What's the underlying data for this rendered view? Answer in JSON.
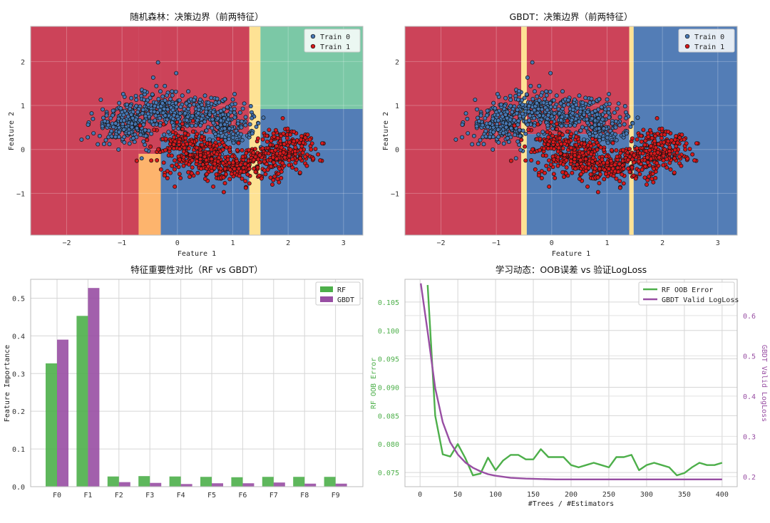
{
  "chart_data": [
    {
      "type": "scatter",
      "panel": "rf-decision-boundary",
      "title": "随机森林：决策边界（前两特征）",
      "xlabel": "Feature 1",
      "ylabel": "Feature 2",
      "xlim": [
        -2.65,
        3.35
      ],
      "ylim": [
        -1.95,
        2.8
      ],
      "xticks": [
        "−2",
        "−1",
        "0",
        "1",
        "2",
        "3"
      ],
      "xtick_values": [
        -2,
        -1,
        0,
        1,
        2,
        3
      ],
      "yticks": [
        "−1",
        "0",
        "1",
        "2"
      ],
      "ytick_values": [
        -1,
        0,
        1,
        2
      ],
      "legend": [
        {
          "label": "Train 0",
          "color": "#4878b4"
        },
        {
          "label": "Train 1",
          "color": "#d7191c"
        }
      ],
      "legend_position": "top-right",
      "grid": true,
      "regions": [
        {
          "x0": -2.65,
          "x1": -0.7,
          "y0": -1.95,
          "y1": 2.8,
          "color": "#c8334b"
        },
        {
          "x0": -0.7,
          "x1": -0.3,
          "y0": -1.95,
          "y1": -0.1,
          "color": "#fdae61"
        },
        {
          "x0": -0.7,
          "x1": -0.3,
          "y0": -0.1,
          "y1": 2.8,
          "color": "#c8334b"
        },
        {
          "x0": -0.3,
          "x1": 1.3,
          "y0": -1.95,
          "y1": 0.35,
          "color": "#4472b0"
        },
        {
          "x0": -0.3,
          "x1": 1.3,
          "y0": 0.35,
          "y1": 2.8,
          "color": "#c8334b"
        },
        {
          "x0": 1.3,
          "x1": 1.5,
          "y0": -1.95,
          "y1": 2.8,
          "color": "#fee08b"
        },
        {
          "x0": 1.5,
          "x1": 3.35,
          "y0": -1.95,
          "y1": 0.92,
          "color": "#4472b0"
        },
        {
          "x0": 1.5,
          "x1": 3.35,
          "y0": 0.92,
          "y1": 2.8,
          "color": "#70c39e"
        }
      ],
      "class0_center": [
        -0.1,
        0.75
      ],
      "class1_center": [
        1.0,
        -0.05
      ],
      "points_per_class": 700
    },
    {
      "type": "scatter",
      "panel": "gbdt-decision-boundary",
      "title": "GBDT：决策边界（前两特征）",
      "xlabel": "Feature 1",
      "ylabel": "Feature 2",
      "xlim": [
        -2.65,
        3.35
      ],
      "ylim": [
        -1.95,
        2.8
      ],
      "xticks": [
        "−2",
        "−1",
        "0",
        "1",
        "2",
        "3"
      ],
      "xtick_values": [
        -2,
        -1,
        0,
        1,
        2,
        3
      ],
      "yticks": [
        "−1",
        "0",
        "1",
        "2"
      ],
      "ytick_values": [
        -1,
        0,
        1,
        2
      ],
      "legend": [
        {
          "label": "Train 0",
          "color": "#4878b4"
        },
        {
          "label": "Train 1",
          "color": "#d7191c"
        }
      ],
      "legend_position": "top-right",
      "grid": true,
      "regions": [
        {
          "x0": -2.65,
          "x1": -0.55,
          "y0": -1.95,
          "y1": 2.8,
          "color": "#c8334b"
        },
        {
          "x0": -0.55,
          "x1": -0.45,
          "y0": -1.95,
          "y1": 2.8,
          "color": "#fee08b"
        },
        {
          "x0": -0.45,
          "x1": 1.4,
          "y0": -1.95,
          "y1": 0.35,
          "color": "#4472b0"
        },
        {
          "x0": -0.45,
          "x1": 1.4,
          "y0": 0.35,
          "y1": 2.8,
          "color": "#c8334b"
        },
        {
          "x0": 1.4,
          "x1": 1.48,
          "y0": -1.95,
          "y1": 2.8,
          "color": "#fee08b"
        },
        {
          "x0": 1.48,
          "x1": 3.35,
          "y0": -1.95,
          "y1": 2.8,
          "color": "#4472b0"
        }
      ],
      "class0_center": [
        -0.1,
        0.75
      ],
      "class1_center": [
        1.0,
        -0.05
      ],
      "points_per_class": 700
    },
    {
      "type": "bar",
      "panel": "feature-importance",
      "title": "特征重要性对比（RF vs GBDT）",
      "xlabel": "",
      "ylabel": "Feature Importance",
      "categories": [
        "F0",
        "F1",
        "F2",
        "F3",
        "F4",
        "F5",
        "F6",
        "F7",
        "F8",
        "F9"
      ],
      "series": [
        {
          "name": "RF",
          "color": "#4daf4a",
          "values": [
            0.327,
            0.453,
            0.027,
            0.028,
            0.027,
            0.026,
            0.025,
            0.026,
            0.026,
            0.026
          ]
        },
        {
          "name": "GBDT",
          "color": "#984ea3",
          "values": [
            0.39,
            0.527,
            0.012,
            0.01,
            0.007,
            0.009,
            0.009,
            0.011,
            0.008,
            0.008
          ]
        }
      ],
      "ylim": [
        0,
        0.55
      ],
      "yticks": [
        "0.0",
        "0.1",
        "0.2",
        "0.3",
        "0.4",
        "0.5"
      ],
      "ytick_values": [
        0,
        0.1,
        0.2,
        0.3,
        0.4,
        0.5
      ],
      "legend_position": "top-right",
      "grid": true
    },
    {
      "type": "line",
      "panel": "learning-dynamics",
      "title": "学习动态：OOB误差 vs 验证LogLoss",
      "xlabel": "#Trees / #Estimators",
      "ylabel": "RF OOB Error",
      "ylabel_right": "GBDT Valid LogLoss",
      "xlim": [
        -20,
        420
      ],
      "xticks": [
        "0",
        "50",
        "100",
        "150",
        "200",
        "250",
        "300",
        "350",
        "400"
      ],
      "xtick_values": [
        0,
        50,
        100,
        150,
        200,
        250,
        300,
        350,
        400
      ],
      "ylim_left": [
        0.0725,
        0.109
      ],
      "yticks_left": [
        "0.075",
        "0.080",
        "0.085",
        "0.090",
        "0.095",
        "0.100",
        "0.105"
      ],
      "ytick_values_left": [
        0.075,
        0.08,
        0.085,
        0.09,
        0.095,
        0.1,
        0.105
      ],
      "ylim_right": [
        0.175,
        0.69
      ],
      "yticks_right": [
        "0.2",
        "0.3",
        "0.4",
        "0.5",
        "0.6"
      ],
      "ytick_values_right": [
        0.2,
        0.3,
        0.4,
        0.5,
        0.6
      ],
      "left_axis_color": "#4daf4a",
      "right_axis_color": "#984ea3",
      "legend_position": "top-right",
      "grid": true,
      "series": [
        {
          "name": "RF OOB Error",
          "axis": "left",
          "color": "#4daf4a",
          "x": [
            10,
            20,
            30,
            40,
            50,
            60,
            70,
            80,
            90,
            100,
            110,
            120,
            130,
            140,
            150,
            160,
            170,
            180,
            190,
            200,
            210,
            220,
            230,
            240,
            250,
            260,
            270,
            280,
            290,
            300,
            310,
            320,
            330,
            340,
            350,
            360,
            370,
            380,
            390,
            400
          ],
          "y": [
            0.108,
            0.085,
            0.0782,
            0.0778,
            0.08,
            0.0775,
            0.0745,
            0.0748,
            0.0776,
            0.0754,
            0.0771,
            0.0781,
            0.0781,
            0.0773,
            0.0773,
            0.0791,
            0.0777,
            0.0777,
            0.0777,
            0.0763,
            0.0759,
            0.0763,
            0.0767,
            0.0763,
            0.0759,
            0.0777,
            0.0777,
            0.0781,
            0.0754,
            0.0763,
            0.0767,
            0.0763,
            0.0759,
            0.0745,
            0.0749,
            0.0759,
            0.0767,
            0.0763,
            0.0763,
            0.0767
          ]
        },
        {
          "name": "GBDT Valid LogLoss",
          "axis": "right",
          "color": "#984ea3",
          "x": [
            1,
            10,
            20,
            30,
            40,
            50,
            60,
            70,
            80,
            90,
            100,
            120,
            140,
            160,
            180,
            200,
            250,
            300,
            350,
            400
          ],
          "y": [
            0.68,
            0.56,
            0.42,
            0.335,
            0.285,
            0.255,
            0.235,
            0.222,
            0.213,
            0.206,
            0.202,
            0.197,
            0.195,
            0.194,
            0.193,
            0.193,
            0.193,
            0.193,
            0.193,
            0.193
          ]
        }
      ]
    }
  ]
}
